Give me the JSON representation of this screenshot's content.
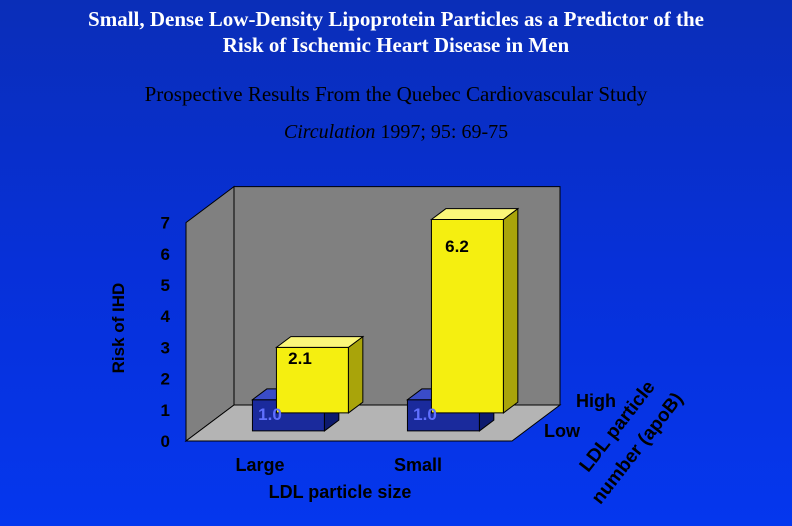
{
  "title_line1": "Small, Dense Low-Density Lipoprotein Particles as a Predictor of the",
  "title_line2": "Risk of Ischemic Heart Disease in Men",
  "subtitle": "Prospective Results From the Quebec Cardiovascular Study",
  "citation_journal": "Circulation",
  "citation_ref": " 1997; 95: 69-75",
  "colors": {
    "background": "#0733d6",
    "title": "#ffffff",
    "wall": "#808080",
    "floor": "#b4b4b4",
    "bar_low": "#1a2a9c",
    "bar_high": "#f5ef10",
    "axis_text": "#000000"
  },
  "chart_data": {
    "type": "bar",
    "subtype": "3d-clustered",
    "categories": [
      "Large",
      "Small"
    ],
    "series": [
      {
        "name": "Low",
        "values": [
          1.0,
          1.0
        ],
        "labels": [
          "1.0",
          "1.0"
        ]
      },
      {
        "name": "High",
        "values": [
          2.1,
          6.2
        ],
        "labels": [
          "2.1",
          "6.2"
        ]
      }
    ],
    "xlabel": "LDL particle size",
    "ylabel": "Risk of IHD",
    "depth_axis_label_line1": "LDL particle",
    "depth_axis_label_line2": "number (apoB)",
    "ylim": [
      0,
      7
    ],
    "yticks": [
      "0",
      "1",
      "2",
      "3",
      "4",
      "5",
      "6",
      "7"
    ],
    "grid": false
  }
}
